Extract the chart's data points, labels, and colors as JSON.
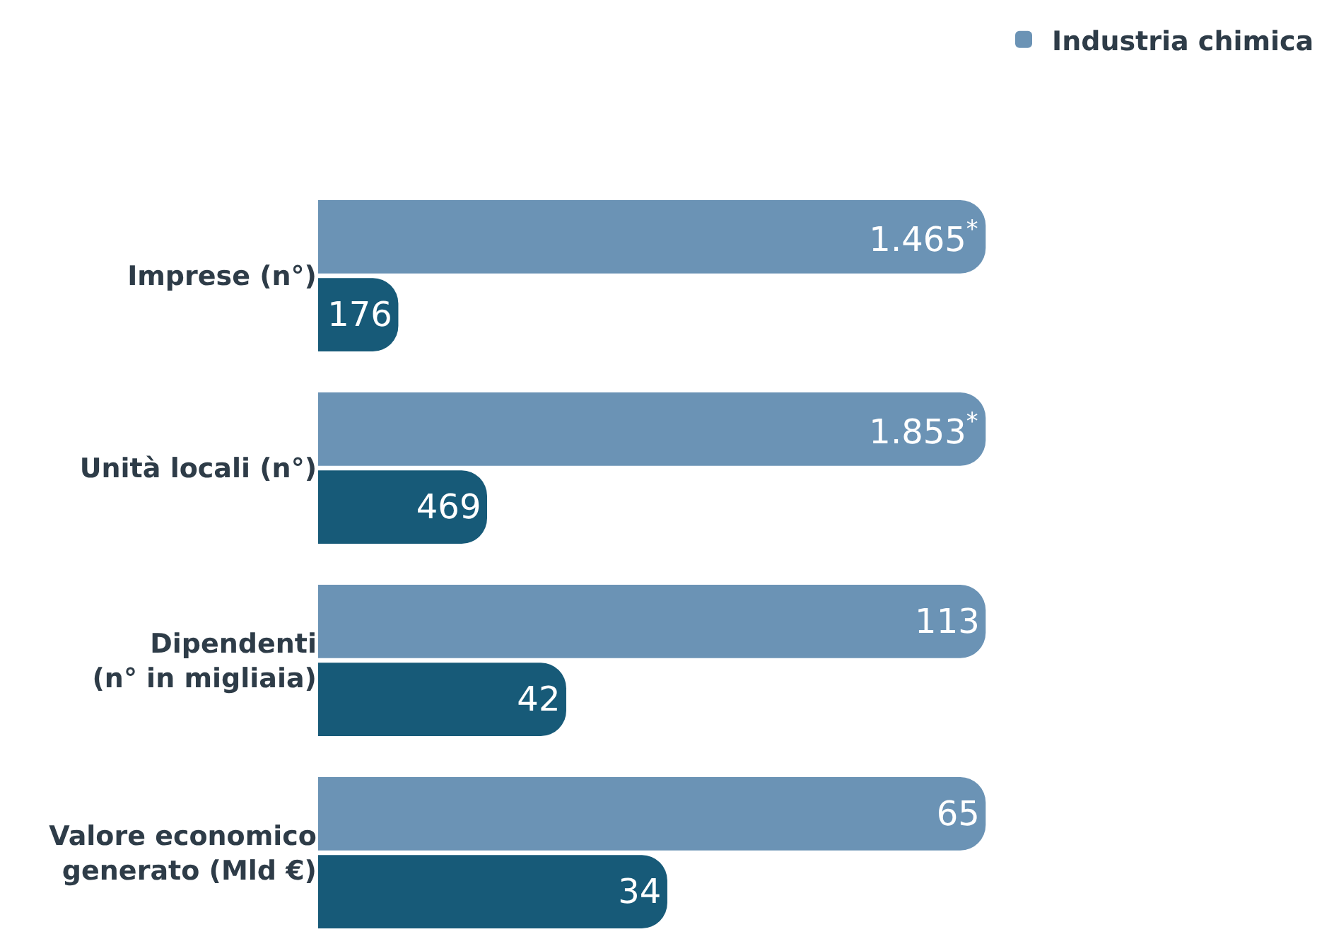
{
  "chart_data": [
    {
      "type": "bar",
      "orientation": "horizontal",
      "categories": [
        "Imprese (n°)"
      ],
      "tick_labels": "y",
      "legend": "top right",
      "series": [
        {
          "name": "Industria chimica",
          "color": "#6b93b5",
          "values": [
            1465
          ],
          "value_labels": [
            "1.465$^{*}$"
          ]
        },
        {
          "color": "#175a78",
          "values": [
            176
          ],
          "value_labels": [
            "176"
          ]
        }
      ]
    },
    {
      "type": "bar",
      "orientation": "horizontal",
      "categories": [
        "Unità locali (n°)"
      ],
      "tick_labels": "y",
      "series": [
        {
          "color": "#6b93b5",
          "values": [
            1853
          ],
          "value_labels": [
            "1.853$^{*}$"
          ]
        },
        {
          "color": "#175a78",
          "values": [
            469
          ],
          "value_labels": [
            "469"
          ]
        }
      ]
    },
    {
      "type": "bar",
      "orientation": "horizontal",
      "categories": [
        "Dipendenti\n(n° in migliaia)"
      ],
      "tick_labels": "y",
      "series": [
        {
          "color": "#6b93b5",
          "values": [
            113
          ],
          "value_labels": [
            "113"
          ]
        },
        {
          "color": "#175a78",
          "values": [
            42
          ],
          "value_labels": [
            "42"
          ]
        }
      ]
    },
    {
      "type": "bar",
      "orientation": "horizontal",
      "categories": [
        "Valore economico\ngenerato (Mld €)"
      ],
      "tick_labels": "y",
      "series": [
        {
          "color": "#6b93b5",
          "values": [
            65
          ],
          "value_labels": [
            "65"
          ]
        },
        {
          "color": "#175a78",
          "values": [
            34
          ],
          "value_labels": [
            "34"
          ]
        }
      ]
    }
  ]
}
